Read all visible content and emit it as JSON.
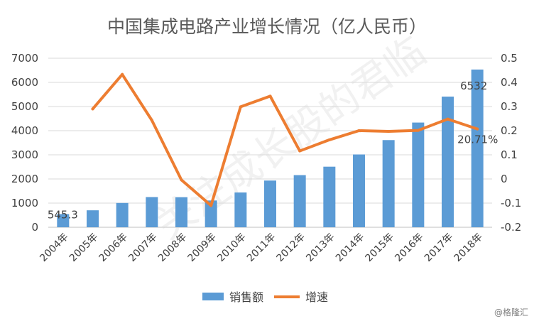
{
  "chart_data": {
    "type": "bar",
    "title": "中国集成电路产业增长情况（亿人民币）",
    "categories": [
      "2004年",
      "2005年",
      "2006年",
      "2007年",
      "2008年",
      "2009年",
      "2010年",
      "2011年",
      "2012年",
      "2013年",
      "2014年",
      "2015年",
      "2016年",
      "2017年",
      "2018年"
    ],
    "series": [
      {
        "name": "销售额",
        "type": "bar",
        "axis": "left",
        "color": "#5b9bd5",
        "values": [
          545.3,
          702,
          1006,
          1251,
          1246,
          1109,
          1440,
          1934,
          2159,
          2509,
          3015,
          3610,
          4336,
          5411,
          6532
        ]
      },
      {
        "name": "增速",
        "type": "line",
        "axis": "right",
        "color": "#ed7d31",
        "values": [
          null,
          0.29,
          0.433,
          0.243,
          -0.004,
          -0.11,
          0.299,
          0.343,
          0.116,
          0.162,
          0.2,
          0.197,
          0.201,
          0.248,
          0.2071
        ]
      }
    ],
    "y_left": {
      "min": 0,
      "max": 7000,
      "ticks": [
        "0",
        "1000",
        "2000",
        "3000",
        "4000",
        "5000",
        "6000",
        "7000"
      ]
    },
    "y_right": {
      "min": -0.2,
      "max": 0.5,
      "ticks": [
        "-0.2",
        "-0.1",
        "0",
        "0.1",
        "0.2",
        "0.3",
        "0.4",
        "0.5"
      ]
    },
    "data_labels": {
      "first_bar": "545.3",
      "last_bar": "6532",
      "last_line": "20.71%"
    },
    "grid": true,
    "legend_position": "bottom"
  },
  "watermark_text": "关注成长股的君临",
  "source_label": "@格隆汇"
}
